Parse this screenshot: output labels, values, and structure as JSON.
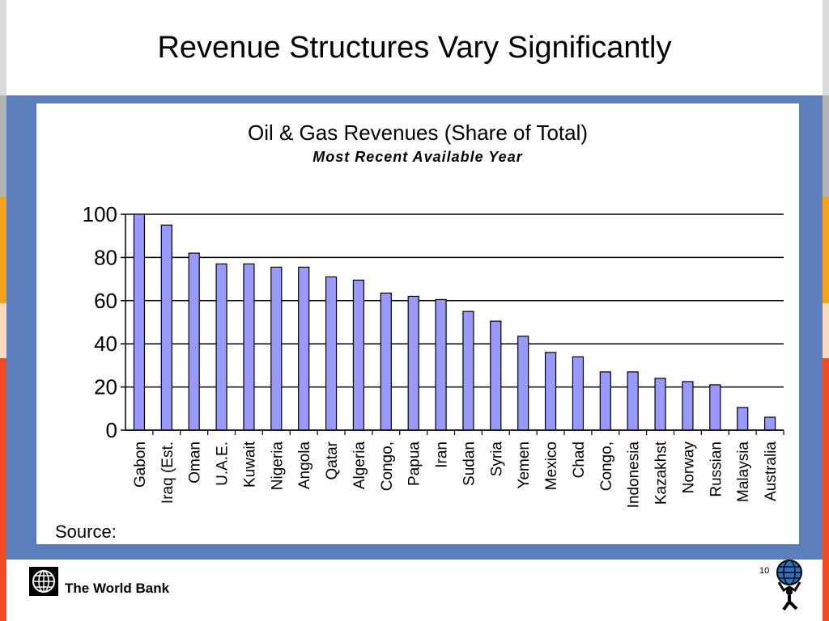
{
  "slide": {
    "title": "Revenue Structures Vary Significantly",
    "source_label": "Source:",
    "footer_brand": "The World Bank",
    "page_number": "10"
  },
  "colors": {
    "frame_blue": "#5b7fbd",
    "bar_fill": "#9999ff",
    "bar_stroke": "#000000",
    "strip_gray": "#b3b3b3",
    "strip_orange": "#f7a21b",
    "strip_peach": "#fbd8bd",
    "strip_red": "#f04a23"
  },
  "chart_data": {
    "type": "bar",
    "title": "Oil & Gas Revenues (Share of Total)",
    "subtitle": "Most Recent Available Year",
    "xlabel": "",
    "ylabel": "",
    "ylim": [
      0,
      100
    ],
    "yticks": [
      0,
      20,
      40,
      60,
      80,
      100
    ],
    "grid": true,
    "categories": [
      "Gabon",
      "Iraq (Est.",
      "Oman",
      "U.A.E.",
      "Kuwait",
      "Nigeria",
      "Angola",
      "Qatar",
      "Algeria",
      "Congo,",
      "Papua",
      "Iran",
      "Sudan",
      "Syria",
      "Yemen",
      "Mexico",
      "Chad",
      "Congo,",
      "Indonesia",
      "Kazakhst",
      "Norway",
      "Russian",
      "Malaysia",
      "Australia"
    ],
    "values": [
      100,
      95,
      82,
      77,
      77,
      75.5,
      75.5,
      71,
      69.5,
      63.5,
      62,
      60.5,
      55,
      50.5,
      43.5,
      36,
      34,
      27,
      27,
      24,
      22.5,
      21,
      10.5,
      6
    ]
  }
}
